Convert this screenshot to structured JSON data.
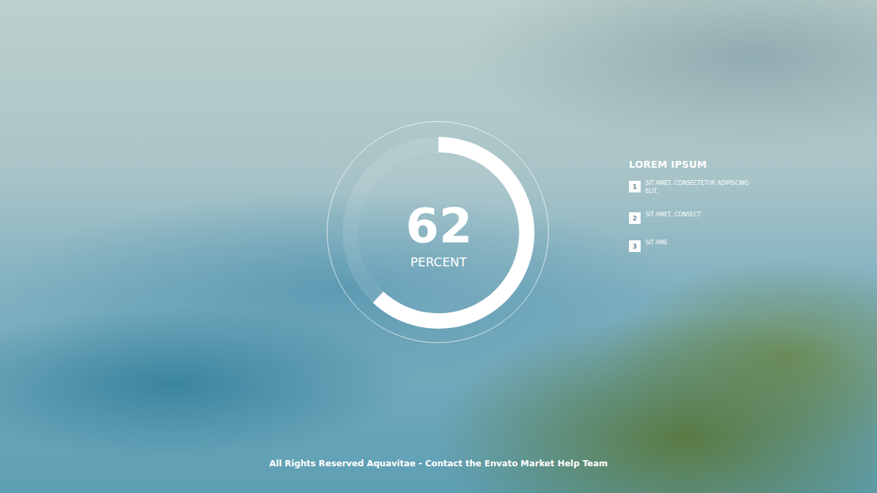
{
  "chart_data": {
    "type": "donut",
    "values": [
      62
    ],
    "ylim": [
      0,
      100
    ],
    "data_labels": true,
    "annotation": "PERCENT",
    "colors": [
      "#ffffff",
      "rgba(255,255,255,0.12)"
    ]
  },
  "side_panel": {
    "title": "LOREM IPSUM",
    "items": [
      {
        "number": 1,
        "text": "SIT AMET, CONSECTETUR ADIPISCING ELIT,"
      },
      {
        "number": 2,
        "text": "SIT AMET, CONSECT"
      },
      {
        "number": 3,
        "text": "SIT AME"
      }
    ]
  },
  "footer": "All Rights Reserved Aquavitae - Contact the Envato Market Help Team"
}
